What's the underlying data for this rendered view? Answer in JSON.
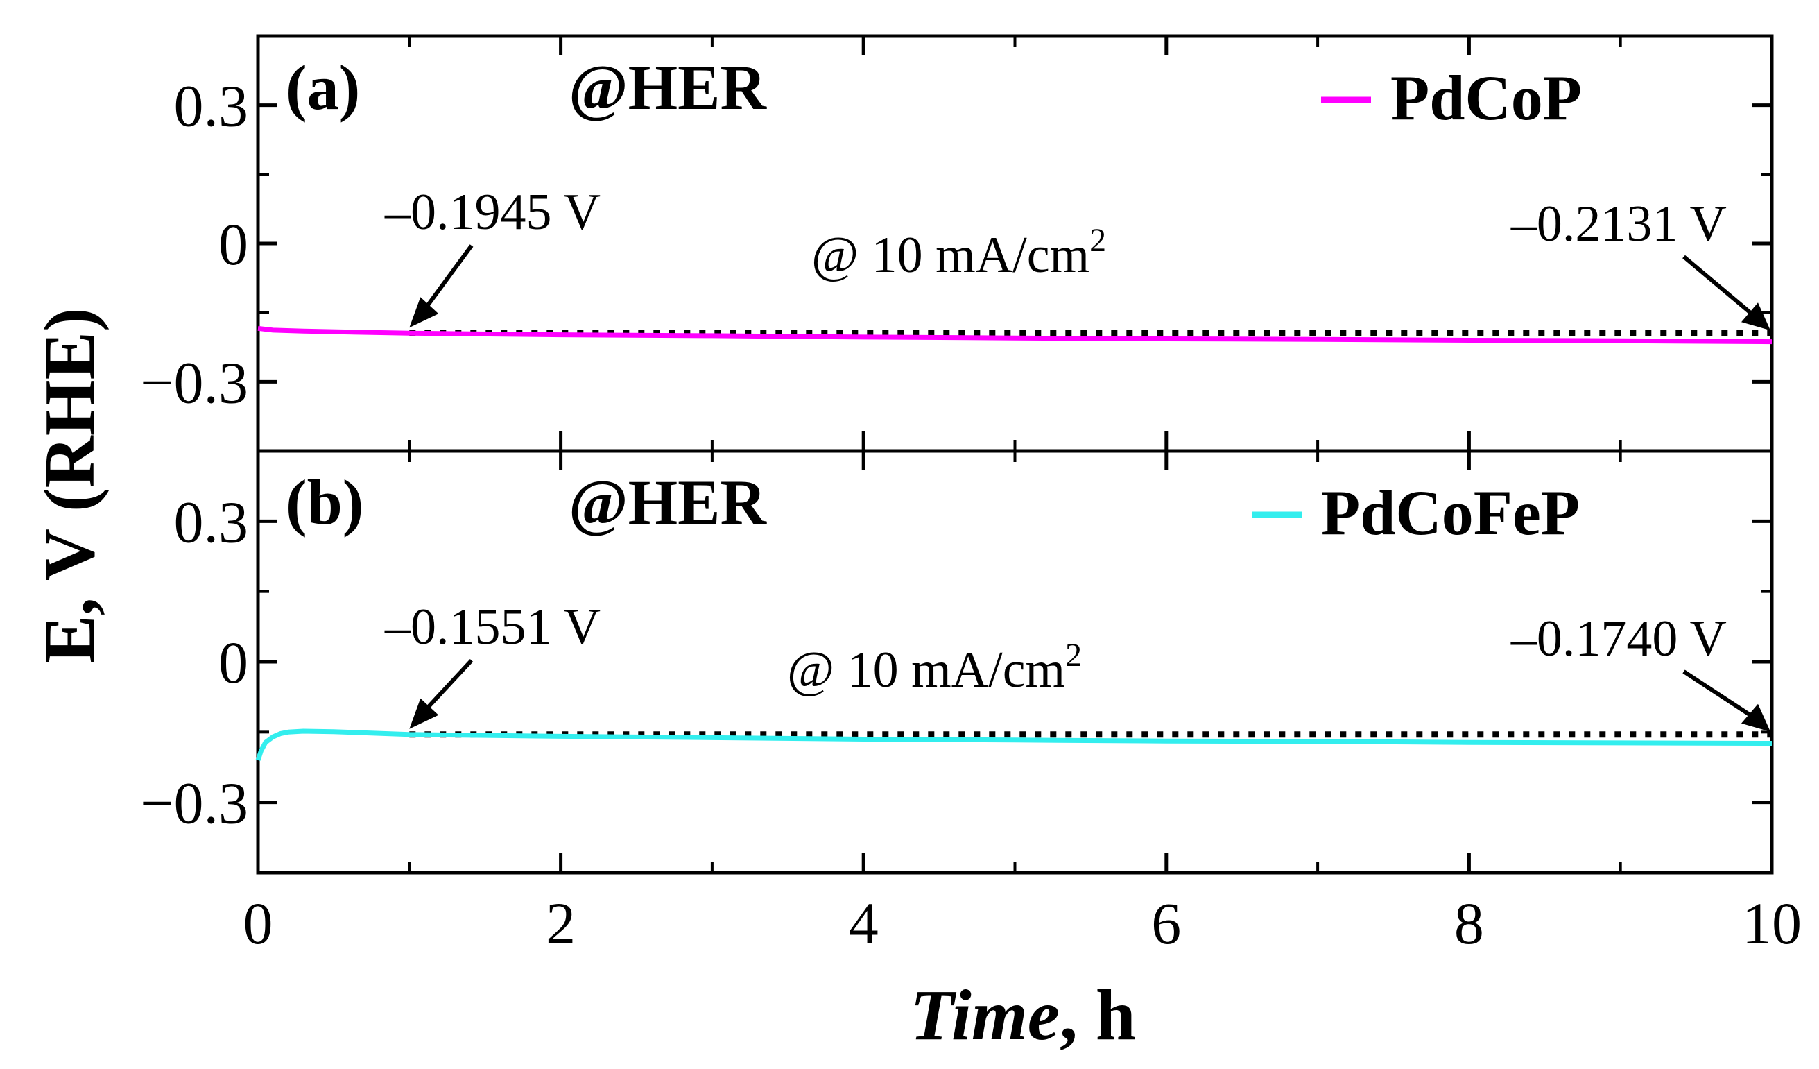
{
  "chart_data": {
    "type": "line",
    "y_axis_title": "E, V (RHE)",
    "x_axis_title": {
      "italic_part": "Time",
      "rest": ", h"
    },
    "x_range": [
      0,
      10
    ],
    "x_ticks": [
      "0",
      "2",
      "4",
      "6",
      "8",
      "10"
    ],
    "x_minor_ticks": [
      1,
      3,
      5,
      7,
      9
    ],
    "panels": [
      {
        "tag": "(a)",
        "title": "@HER",
        "legend": "PdCoP",
        "color": "#ff00ff",
        "ylim": [
          -0.45,
          0.45
        ],
        "y_ticks": [
          0.3,
          0,
          -0.3
        ],
        "y_tick_labels": [
          "0.3",
          "0",
          "−0.3"
        ],
        "series": {
          "name": "PdCoP",
          "x": [
            0,
            0.1,
            0.3,
            0.6,
            1,
            2,
            3,
            4,
            5,
            6,
            7,
            8,
            9,
            10
          ],
          "y": [
            -0.184,
            -0.188,
            -0.19,
            -0.192,
            -0.1945,
            -0.198,
            -0.2,
            -0.203,
            -0.205,
            -0.207,
            -0.208,
            -0.21,
            -0.211,
            -0.2131
          ]
        },
        "reference_level": -0.1945,
        "annotation_start": "–0.1945 V",
        "annotation_end": "–0.2131 V",
        "annotation_condition": "@ 10 mA/cm",
        "annotation_superscript": "2"
      },
      {
        "tag": "(b)",
        "title": "@HER",
        "legend": "PdCoFeP",
        "color": "#33eeee",
        "ylim": [
          -0.45,
          0.45
        ],
        "y_ticks": [
          0.3,
          0,
          -0.3
        ],
        "y_tick_labels": [
          "0.3",
          "0",
          "−0.3"
        ],
        "series": {
          "name": "PdCoFeP",
          "x": [
            0,
            0.02,
            0.05,
            0.1,
            0.15,
            0.2,
            0.3,
            0.5,
            1,
            2,
            3,
            4,
            5,
            6,
            7,
            8,
            9,
            10
          ],
          "y": [
            -0.21,
            -0.19,
            -0.172,
            -0.16,
            -0.153,
            -0.15,
            -0.148,
            -0.149,
            -0.1551,
            -0.159,
            -0.162,
            -0.165,
            -0.167,
            -0.169,
            -0.17,
            -0.172,
            -0.173,
            -0.174
          ]
        },
        "reference_level": -0.1551,
        "annotation_start": "–0.1551 V",
        "annotation_end": "–0.1740 V",
        "annotation_condition": "@ 10 mA/cm",
        "annotation_superscript": "2"
      }
    ]
  }
}
